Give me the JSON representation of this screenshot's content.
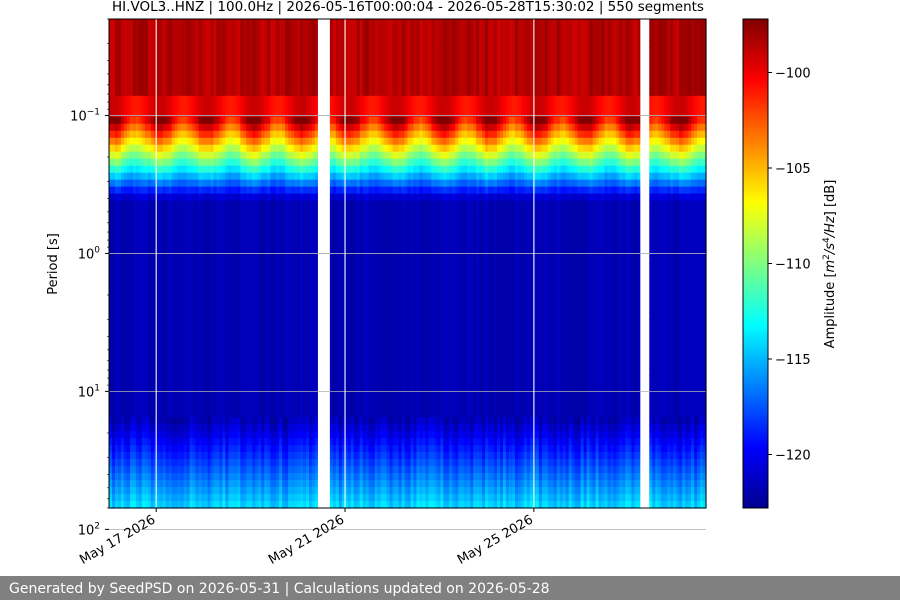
{
  "chart_data": {
    "type": "heatmap",
    "title": "HI.VOL3..HNZ | 100.0Hz | 2026-05-16T00:00:04 - 2026-05-28T15:30:02 | 550 segments",
    "xlabel": "",
    "ylabel": "Period [s]",
    "x_range": [
      "2026-05-16T00:00:04",
      "2026-05-28T15:30:02"
    ],
    "y_scale": "log",
    "y_range_seconds": [
      0.02,
      70
    ],
    "y_ticks": [
      {
        "value": 0.1,
        "base": "10",
        "exp": "−1"
      },
      {
        "value": 1,
        "base": "10",
        "exp": "0"
      },
      {
        "value": 10,
        "base": "10",
        "exp": "1"
      },
      {
        "value": 100,
        "base": "10",
        "exp": "2"
      }
    ],
    "x_ticks": [
      {
        "date": "2026-05-17",
        "label": "May 17 2026"
      },
      {
        "date": "2026-05-21",
        "label": "May 21 2026"
      },
      {
        "date": "2026-05-25",
        "label": "May 25 2026"
      }
    ],
    "grid": true,
    "colormap": "jet",
    "colorbar": {
      "label_prefix": "Amplitude [",
      "label_unit_a": "m",
      "label_sup_a": "2",
      "label_unit_b": "/s",
      "label_sup_b": "4",
      "label_unit_c": "/Hz",
      "label_suffix": "] [dB]",
      "range": [
        -122.8,
        -97.2
      ],
      "ticks": [
        -100,
        -105,
        -110,
        -115,
        -120
      ],
      "tick_labels": [
        "−100",
        "−105",
        "−110",
        "−115",
        "−120"
      ]
    },
    "data_gaps": [
      {
        "start": "2026-05-20T10:00:00",
        "end": "2026-05-20T16:00:00"
      },
      {
        "start": "2026-05-27T06:00:00",
        "end": "2026-05-27T11:00:00"
      }
    ]
  },
  "footer": {
    "text": "Generated by SeedPSD on 2026-05-31 | Calculations updated on 2026-05-28"
  }
}
